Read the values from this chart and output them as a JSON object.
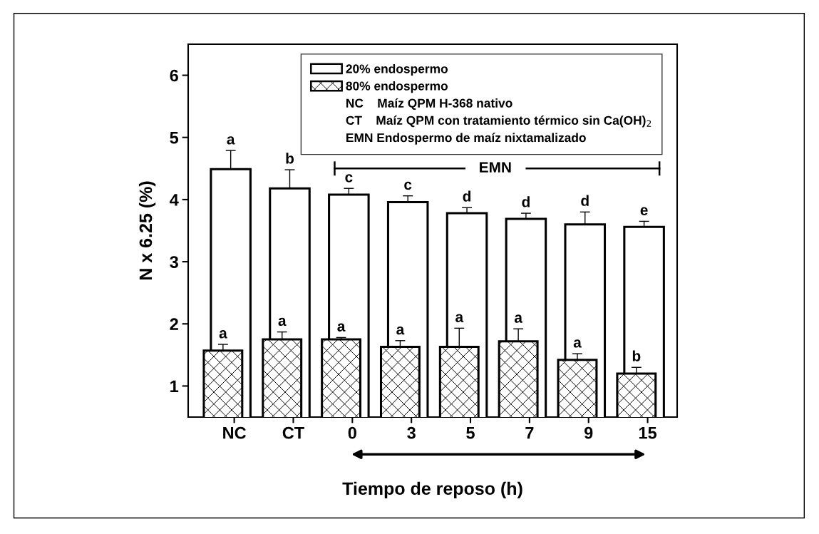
{
  "chart_data": {
    "type": "bar",
    "ylabel": "N x 6.25 (%)",
    "xlabel": "Tiempo de reposo (h)",
    "categories": [
      "NC",
      "CT",
      "0",
      "3",
      "5",
      "7",
      "9",
      "15"
    ],
    "series": [
      {
        "name": "20% endospermo",
        "color": "#ffffff",
        "values": [
          4.49,
          4.18,
          4.08,
          3.96,
          3.78,
          3.69,
          3.6,
          3.56
        ],
        "errors": [
          0.3,
          0.3,
          0.1,
          0.1,
          0.09,
          0.09,
          0.2,
          0.09
        ]
      },
      {
        "name": "80% endospermo",
        "color": "#000000",
        "values": [
          1.57,
          1.75,
          1.75,
          1.63,
          1.63,
          1.72,
          1.42,
          1.2
        ],
        "errors": [
          0.1,
          0.12,
          0.03,
          0.1,
          0.3,
          0.2,
          0.1,
          0.1
        ]
      }
    ],
    "ylim": [
      0.5,
      6.5
    ],
    "yticks": [
      1,
      2,
      3,
      4,
      5,
      6
    ],
    "grid": false,
    "legend": "top",
    "annotations": [
      "NC    Maíz QPM H-368 nativo",
      "CT    Maíz QPM con tratamiento térmico sin Ca(OH)$_{2}$",
      "EMN Endospermo de maíz nixtamalizado",
      "EMN",
      "a",
      "b",
      "c",
      "c",
      "d",
      "d",
      "d",
      "e",
      "a",
      "a",
      "a",
      "a",
      "a",
      "a",
      "a",
      "b"
    ]
  }
}
